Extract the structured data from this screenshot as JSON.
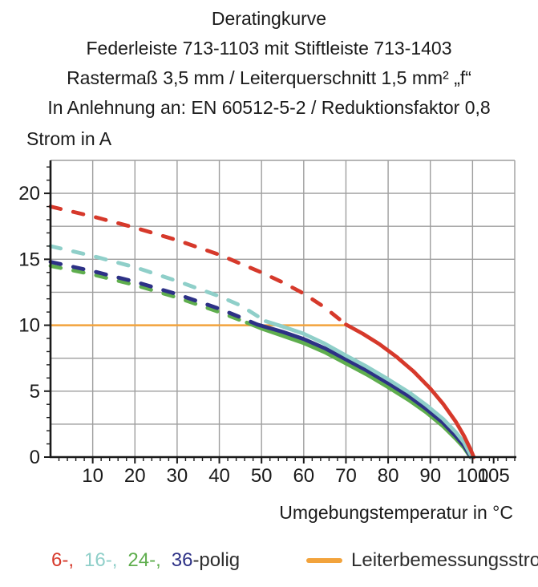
{
  "header": {
    "lines": [
      "Deratingkurve",
      "Federleiste 713-1103 mit Stiftleiste 713-1403",
      "Rastermaß 3,5 mm / Leiterquerschnitt 1,5 mm² „f“",
      "In Anlehnung an: EN 60512-5-2 / Reduktionsfaktor 0,8"
    ]
  },
  "colors": {
    "red": "#d6392b",
    "cyan": "#8fcfc9",
    "green": "#5fae4e",
    "navy": "#2d3186",
    "orange": "#f2a33c",
    "grid": "#9e9e9e",
    "axis": "#1a1a1a",
    "text": "#1a1a1a",
    "text2": "#2e2e2e"
  },
  "legend": {
    "series_items": [
      {
        "label": "6-,",
        "color_key": "red"
      },
      {
        "label": "16-,",
        "color_key": "cyan"
      },
      {
        "label": "24-,",
        "color_key": "green"
      },
      {
        "label": "36",
        "color_key": "navy"
      }
    ],
    "series_suffix": "-polig",
    "reference": {
      "label": "Leiterbemessungsstrom",
      "color_key": "orange"
    }
  },
  "chart_data": {
    "type": "line",
    "title": "Deratingkurve",
    "xlabel": "Umgebungstemperatur in °C",
    "ylabel": "Strom in A",
    "xlim": [
      0,
      110
    ],
    "ylim": [
      0,
      22.5
    ],
    "x_tick_labels": [
      10,
      20,
      30,
      40,
      50,
      60,
      70,
      80,
      90,
      100,
      105
    ],
    "x_grid_step": 10,
    "x_grid_max": 100,
    "x_minor_step": 2,
    "y_tick_labels": [
      0,
      5,
      10,
      15,
      20
    ],
    "y_grid_step": 2.5,
    "y_minor_step": 1,
    "grid": true,
    "legend_position": "bottom",
    "series": [
      {
        "name": "Leiterbemessungsstrom",
        "color_key": "orange",
        "width": 2.5,
        "segments": [
          {
            "style": "solid",
            "points": [
              [
                0,
                10
              ],
              [
                70.5,
                10
              ]
            ]
          }
        ]
      },
      {
        "name": "24-polig",
        "color_key": "green",
        "width": 4.8,
        "segments": [
          {
            "style": "dashed",
            "points": [
              [
                0,
                14.5
              ],
              [
                10,
                13.85
              ],
              [
                20,
                13.05
              ],
              [
                30,
                12.1
              ],
              [
                40,
                11.0
              ],
              [
                44,
                10.5
              ],
              [
                46.5,
                10.2
              ]
            ]
          },
          {
            "style": "solid",
            "points": [
              [
                46.5,
                10.2
              ],
              [
                50,
                9.75
              ],
              [
                55,
                9.2
              ],
              [
                60,
                8.65
              ],
              [
                65,
                7.95
              ],
              [
                70,
                7.1
              ],
              [
                75,
                6.25
              ],
              [
                80,
                5.3
              ],
              [
                85,
                4.3
              ],
              [
                89,
                3.4
              ],
              [
                93,
                2.35
              ],
              [
                96,
                1.4
              ],
              [
                98,
                0.7
              ],
              [
                99.5,
                0
              ]
            ]
          }
        ]
      },
      {
        "name": "36-polig",
        "color_key": "navy",
        "width": 4.8,
        "segments": [
          {
            "style": "dashed",
            "points": [
              [
                0,
                14.8
              ],
              [
                10,
                14.1
              ],
              [
                20,
                13.3
              ],
              [
                30,
                12.35
              ],
              [
                40,
                11.25
              ],
              [
                45,
                10.6
              ],
              [
                49,
                10.05
              ]
            ]
          },
          {
            "style": "solid",
            "points": [
              [
                49,
                10.05
              ],
              [
                55,
                9.5
              ],
              [
                60,
                8.95
              ],
              [
                65,
                8.25
              ],
              [
                70,
                7.4
              ],
              [
                75,
                6.55
              ],
              [
                80,
                5.6
              ],
              [
                85,
                4.6
              ],
              [
                89,
                3.65
              ],
              [
                93,
                2.6
              ],
              [
                96,
                1.6
              ],
              [
                98,
                0.85
              ],
              [
                99.6,
                0
              ]
            ]
          }
        ]
      },
      {
        "name": "16-polig",
        "color_key": "cyan",
        "width": 4.8,
        "segments": [
          {
            "style": "dashed",
            "points": [
              [
                0,
                16
              ],
              [
                10,
                15.25
              ],
              [
                20,
                14.4
              ],
              [
                30,
                13.35
              ],
              [
                40,
                12.2
              ],
              [
                45,
                11.5
              ],
              [
                51,
                10.3
              ]
            ]
          },
          {
            "style": "solid",
            "points": [
              [
                51,
                10.3
              ],
              [
                55,
                9.9
              ],
              [
                60,
                9.35
              ],
              [
                65,
                8.6
              ],
              [
                70,
                7.7
              ],
              [
                75,
                6.85
              ],
              [
                80,
                5.9
              ],
              [
                85,
                4.9
              ],
              [
                89,
                3.95
              ],
              [
                93,
                2.9
              ],
              [
                96,
                1.9
              ],
              [
                98,
                1.1
              ],
              [
                99.8,
                0
              ]
            ]
          }
        ]
      },
      {
        "name": "6-polig",
        "color_key": "red",
        "width": 4.8,
        "segments": [
          {
            "style": "dashed",
            "points": [
              [
                0,
                19
              ],
              [
                10,
                18.25
              ],
              [
                20,
                17.4
              ],
              [
                30,
                16.45
              ],
              [
                40,
                15.35
              ],
              [
                50,
                14.0
              ],
              [
                55,
                13.25
              ],
              [
                60,
                12.4
              ],
              [
                65,
                11.35
              ],
              [
                70,
                10.05
              ]
            ]
          },
          {
            "style": "solid",
            "points": [
              [
                70,
                10.05
              ],
              [
                74,
                9.35
              ],
              [
                78,
                8.55
              ],
              [
                82,
                7.6
              ],
              [
                86,
                6.5
              ],
              [
                90,
                5.2
              ],
              [
                93,
                4.05
              ],
              [
                96,
                2.7
              ],
              [
                98,
                1.6
              ],
              [
                99.5,
                0.6
              ],
              [
                100.3,
                0
              ]
            ]
          }
        ]
      }
    ]
  }
}
